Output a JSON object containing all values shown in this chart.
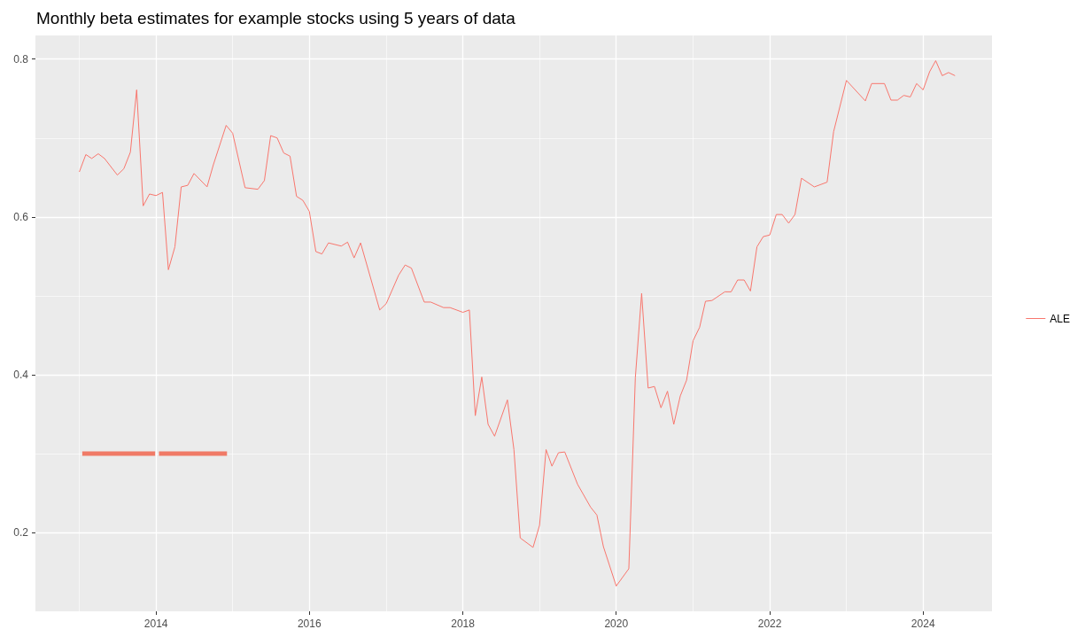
{
  "chart_data": {
    "type": "line",
    "title": "Monthly beta estimates for example stocks using 5 years of data",
    "xlim": [
      "2012-06-06",
      "2024-11-24"
    ],
    "xticks": [
      {
        "value": "2013",
        "label": null
      },
      {
        "value": "2014",
        "label": "2014"
      },
      {
        "value": "2015",
        "label": null
      },
      {
        "value": "2016",
        "label": "2016"
      },
      {
        "value": "2017",
        "label": null
      },
      {
        "value": "2018",
        "label": "2018"
      },
      {
        "value": "2019",
        "label": null
      },
      {
        "value": "2020",
        "label": "2020"
      },
      {
        "value": "2021",
        "label": null
      },
      {
        "value": "2022",
        "label": "2022"
      },
      {
        "value": "2023",
        "label": null
      },
      {
        "value": "2024",
        "label": "2024"
      }
    ],
    "ylim": [
      0.1,
      0.83
    ],
    "yticks": [
      0.2,
      {
        "value": 0.3,
        "label": null
      },
      0.4,
      {
        "value": 0.5,
        "label": null
      },
      0.6,
      {
        "value": 0.7,
        "label": null
      },
      0.8
    ],
    "grid": true,
    "legend": "right",
    "marker": "none",
    "line_style": "solid",
    "series": [
      {
        "name": "ALE",
        "color": "#f8766d",
        "x": [
          "2013-01",
          "2013-02",
          "2013-03",
          "2013-04",
          "2013-05",
          "2013-07",
          "2013-08",
          "2013-09",
          "2013-10",
          "2013-11",
          "2013-12",
          "2014-01",
          "2014-02",
          "2014-03",
          "2014-04",
          "2014-05",
          "2014-06",
          "2014-07",
          "2014-09",
          "2014-10",
          "2014-12",
          "2015-01",
          "2015-03",
          "2015-05",
          "2015-06",
          "2015-07",
          "2015-08",
          "2015-09",
          "2015-10",
          "2015-11",
          "2015-12",
          "2016-01",
          "2016-02",
          "2016-03",
          "2016-04",
          "2016-06",
          "2016-07",
          "2016-08",
          "2016-09",
          "2016-12",
          "2017-01",
          "2017-03",
          "2017-04",
          "2017-05",
          "2017-07",
          "2017-08",
          "2017-10",
          "2017-11",
          "2018-01",
          "2018-02",
          "2018-03",
          "2018-04",
          "2018-05",
          "2018-06",
          "2018-08",
          "2018-09",
          "2018-10",
          "2018-12",
          "2019-01",
          "2019-02",
          "2019-03",
          "2019-04",
          "2019-05",
          "2019-07",
          "2019-09",
          "2019-10",
          "2019-11",
          "2020-01",
          "2020-03",
          "2020-04",
          "2020-05",
          "2020-06",
          "2020-07",
          "2020-08",
          "2020-09",
          "2020-10",
          "2020-11",
          "2020-12",
          "2021-01",
          "2021-02",
          "2021-03",
          "2021-04",
          "2021-06",
          "2021-07",
          "2021-08",
          "2021-09",
          "2021-10",
          "2021-11",
          "2021-12",
          "2022-01",
          "2022-02",
          "2022-03",
          "2022-04",
          "2022-05",
          "2022-06",
          "2022-08",
          "2022-10",
          "2022-11",
          "2023-01",
          "2023-04",
          "2023-05",
          "2023-07",
          "2023-08",
          "2023-09",
          "2023-10",
          "2023-11",
          "2023-12",
          "2024-01",
          "2024-02",
          "2024-03",
          "2024-04",
          "2024-05",
          "2024-06"
        ],
        "values": [
          0.657,
          0.679,
          0.674,
          0.68,
          0.674,
          0.653,
          0.661,
          0.682,
          0.761,
          0.614,
          0.629,
          0.627,
          0.631,
          0.533,
          0.562,
          0.638,
          0.64,
          0.655,
          0.638,
          0.666,
          0.716,
          0.706,
          0.637,
          0.635,
          0.646,
          0.703,
          0.7,
          0.681,
          0.677,
          0.626,
          0.621,
          0.607,
          0.556,
          0.553,
          0.567,
          0.563,
          0.568,
          0.548,
          0.567,
          0.482,
          0.49,
          0.526,
          0.539,
          0.535,
          0.492,
          0.492,
          0.485,
          0.485,
          0.479,
          0.482,
          0.348,
          0.397,
          0.337,
          0.322,
          0.368,
          0.305,
          0.193,
          0.181,
          0.209,
          0.305,
          0.284,
          0.301,
          0.302,
          0.261,
          0.232,
          0.222,
          0.182,
          0.132,
          0.154,
          0.396,
          0.503,
          0.383,
          0.385,
          0.358,
          0.379,
          0.337,
          0.373,
          0.393,
          0.443,
          0.46,
          0.493,
          0.494,
          0.505,
          0.505,
          0.52,
          0.52,
          0.506,
          0.562,
          0.575,
          0.577,
          0.603,
          0.603,
          0.592,
          0.603,
          0.649,
          0.638,
          0.644,
          0.708,
          0.773,
          0.747,
          0.769,
          0.769,
          0.748,
          0.748,
          0.754,
          0.752,
          0.769,
          0.761,
          0.784,
          0.798,
          0.779,
          0.783,
          0.779
        ]
      },
      {
        "color": "#f07a66",
        "x": [
          "2013-01-15",
          "2013-12-28"
        ],
        "values": [
          0.3,
          0.3
        ]
      },
      {
        "color": "#f07a66",
        "x": [
          "2014-01-15",
          "2014-12-05"
        ],
        "values": [
          0.3,
          0.3
        ]
      }
    ]
  }
}
